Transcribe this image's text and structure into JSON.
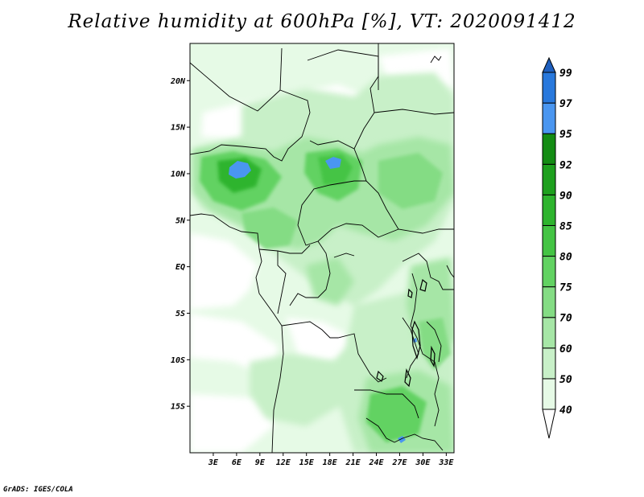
{
  "title": "Relative humidity at 600hPa [%], VT: 2020091412",
  "credit": "GrADS: IGES/COLA",
  "map": {
    "lon_range": [
      0,
      34
    ],
    "lat_range": [
      -20,
      24
    ],
    "x_ticks": [
      {
        "lon": 3,
        "label": "3E"
      },
      {
        "lon": 6,
        "label": "6E"
      },
      {
        "lon": 9,
        "label": "9E"
      },
      {
        "lon": 12,
        "label": "12E"
      },
      {
        "lon": 15,
        "label": "15E"
      },
      {
        "lon": 18,
        "label": "18E"
      },
      {
        "lon": 21,
        "label": "21E"
      },
      {
        "lon": 24,
        "label": "24E"
      },
      {
        "lon": 27,
        "label": "27E"
      },
      {
        "lon": 30,
        "label": "30E"
      },
      {
        "lon": 33,
        "label": "33E"
      }
    ],
    "y_ticks": [
      {
        "lat": 20,
        "label": "20N"
      },
      {
        "lat": 15,
        "label": "15N"
      },
      {
        "lat": 10,
        "label": "10N"
      },
      {
        "lat": 5,
        "label": "5N"
      },
      {
        "lat": 0,
        "label": "EQ"
      },
      {
        "lat": -5,
        "label": "5S"
      },
      {
        "lat": -10,
        "label": "10S"
      },
      {
        "lat": -15,
        "label": "15S"
      }
    ]
  },
  "colorbar": {
    "levels": [
      "40",
      "50",
      "60",
      "70",
      "75",
      "80",
      "85",
      "90",
      "92",
      "95",
      "97",
      "99"
    ],
    "colors": [
      "#ffffff",
      "#e6fae6",
      "#c8f0c8",
      "#a6e6a6",
      "#84dc84",
      "#62d262",
      "#44c444",
      "#2eb42e",
      "#1ea01e",
      "#148c14",
      "#4a96f0",
      "#2878dc",
      "#1e5fbe"
    ]
  }
}
